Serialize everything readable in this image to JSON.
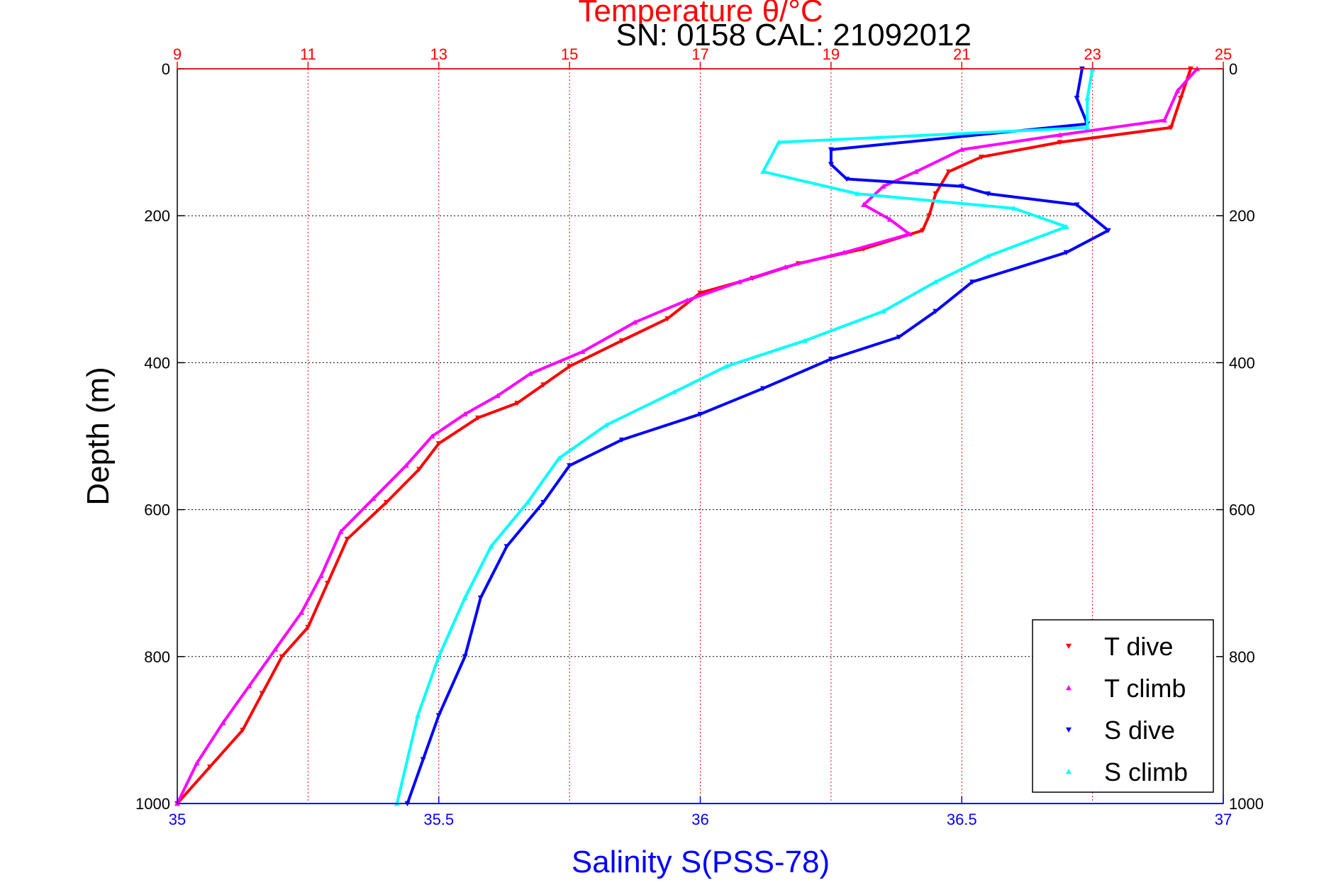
{
  "chart_data": {
    "type": "scatter",
    "title": "Temperature θ/°C",
    "subtitle": "SN: 0158  CAL: 21092012",
    "ylabel": "Depth (m)",
    "x_bottom_label": "Salinity S(PSS-78)",
    "y_axis": {
      "range": [
        0,
        1000
      ],
      "reversed": true,
      "ticks": [
        0,
        200,
        400,
        600,
        800,
        1000
      ]
    },
    "x_top": {
      "range": [
        9,
        25
      ],
      "ticks": [
        9,
        11,
        13,
        15,
        17,
        19,
        21,
        23,
        25
      ],
      "color": "#ff0000",
      "grid": true
    },
    "x_bottom": {
      "range": [
        35,
        37
      ],
      "ticks": [
        35,
        35.5,
        36,
        36.5,
        37
      ],
      "color": "#0000ff",
      "grid": false
    },
    "legend": {
      "position": "bottom-right",
      "entries": [
        {
          "label": "T dive",
          "color": "#ff0000",
          "marker": "triangle-down"
        },
        {
          "label": "T climb",
          "color": "#ff00ff",
          "marker": "triangle-up"
        },
        {
          "label": "S dive",
          "color": "#0000ff",
          "marker": "triangle-down"
        },
        {
          "label": "S climb",
          "color": "#00ffff",
          "marker": "triangle-up"
        }
      ]
    },
    "series": [
      {
        "name": "T dive",
        "axis": "top",
        "color": "#ff0000",
        "marker": "triangle-down",
        "x": [
          24.5,
          24.35,
          24.2,
          22.5,
          21.3,
          20.8,
          20.6,
          20.5,
          20.4,
          19.5,
          18.5,
          17.8,
          17.0,
          16.5,
          15.8,
          15.0,
          14.6,
          14.2,
          13.6,
          13.0,
          12.7,
          12.2,
          11.6,
          11.3,
          11.0,
          10.6,
          10.3,
          10.0,
          9.5,
          9.0
        ],
        "y": [
          0,
          40,
          80,
          100,
          120,
          140,
          170,
          200,
          220,
          245,
          265,
          285,
          305,
          340,
          370,
          405,
          430,
          455,
          475,
          510,
          545,
          590,
          640,
          700,
          760,
          800,
          850,
          900,
          950,
          1000
        ]
      },
      {
        "name": "T climb",
        "axis": "top",
        "color": "#ff00ff",
        "marker": "triangle-up",
        "x": [
          24.6,
          24.3,
          24.1,
          22.5,
          21.0,
          20.3,
          19.8,
          19.5,
          19.9,
          20.2,
          19.2,
          18.3,
          17.6,
          16.8,
          16.0,
          15.2,
          14.4,
          13.9,
          13.4,
          12.9,
          12.5,
          12.0,
          11.5,
          11.2,
          10.9,
          10.5,
          10.1,
          9.7,
          9.3,
          9.0
        ],
        "y": [
          0,
          30,
          70,
          90,
          110,
          140,
          160,
          185,
          205,
          225,
          250,
          270,
          290,
          315,
          345,
          385,
          415,
          445,
          470,
          500,
          540,
          585,
          630,
          690,
          740,
          790,
          840,
          890,
          945,
          1000
        ]
      },
      {
        "name": "S dive",
        "axis": "bottom",
        "color": "#0000ff",
        "marker": "triangle-down",
        "x": [
          36.73,
          36.72,
          36.74,
          36.25,
          36.25,
          36.28,
          36.5,
          36.55,
          36.72,
          36.78,
          36.7,
          36.52,
          36.45,
          36.38,
          36.25,
          36.12,
          36.0,
          35.85,
          35.75,
          35.7,
          35.63,
          35.58,
          35.55,
          35.5,
          35.47,
          35.44
        ],
        "y": [
          0,
          40,
          75,
          110,
          130,
          150,
          160,
          170,
          185,
          220,
          250,
          290,
          330,
          365,
          395,
          435,
          470,
          505,
          540,
          590,
          650,
          720,
          800,
          880,
          940,
          1000
        ]
      },
      {
        "name": "S climb",
        "axis": "bottom",
        "color": "#00ffff",
        "marker": "triangle-up",
        "x": [
          36.75,
          36.74,
          36.74,
          36.15,
          36.12,
          36.3,
          36.6,
          36.7,
          36.55,
          36.45,
          36.35,
          36.2,
          36.05,
          35.95,
          35.82,
          35.73,
          35.67,
          35.6,
          35.55,
          35.5,
          35.46,
          35.42
        ],
        "y": [
          0,
          40,
          80,
          100,
          140,
          170,
          190,
          215,
          255,
          290,
          330,
          370,
          405,
          440,
          485,
          530,
          590,
          650,
          720,
          800,
          880,
          1000
        ]
      }
    ]
  }
}
